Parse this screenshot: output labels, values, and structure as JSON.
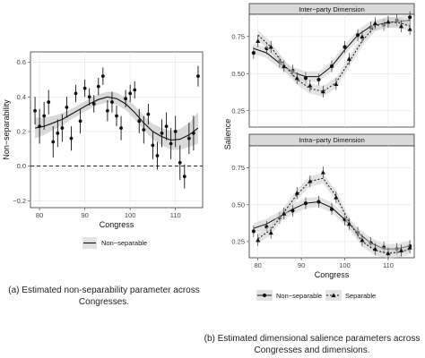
{
  "chart_data": [
    {
      "type": "scatter",
      "xlabel": "Congress",
      "ylabel": "Non−separability",
      "xlim": [
        78,
        116
      ],
      "ylim": [
        -0.24,
        0.66
      ],
      "xticks": [
        80,
        90,
        100,
        110
      ],
      "yticks": [
        -0.2,
        0.0,
        0.2,
        0.4,
        0.6
      ],
      "ytick_labels": [
        "−0.2",
        "0.0",
        "0.2",
        "0.4",
        "0.6"
      ],
      "reference_line": {
        "y": 0.0,
        "style": "dashed"
      },
      "grid": true,
      "legend": {
        "placement": "bottom",
        "entries": [
          "Non−separable"
        ]
      },
      "points": {
        "x": [
          79,
          80,
          81,
          82,
          83,
          84,
          85,
          86,
          87,
          88,
          89,
          90,
          91,
          92,
          93,
          94,
          95,
          96,
          97,
          98,
          99,
          100,
          101,
          102,
          103,
          104,
          105,
          106,
          107,
          108,
          109,
          110,
          111,
          112,
          113,
          114,
          115
        ],
        "y": [
          0.32,
          0.23,
          0.29,
          0.37,
          0.14,
          0.19,
          0.22,
          0.34,
          0.16,
          0.42,
          0.26,
          0.45,
          0.4,
          0.36,
          0.46,
          0.52,
          0.32,
          0.37,
          0.29,
          0.22,
          0.39,
          0.42,
          0.44,
          0.26,
          0.21,
          0.3,
          0.12,
          0.06,
          0.19,
          0.23,
          0.13,
          0.2,
          0.02,
          -0.06,
          0.16,
          0.19,
          0.52
        ],
        "ci_half": [
          0.08,
          0.1,
          0.08,
          0.07,
          0.09,
          0.08,
          0.08,
          0.06,
          0.07,
          0.05,
          0.07,
          0.05,
          0.05,
          0.05,
          0.05,
          0.05,
          0.06,
          0.06,
          0.06,
          0.07,
          0.05,
          0.05,
          0.05,
          0.07,
          0.08,
          0.06,
          0.08,
          0.08,
          0.08,
          0.08,
          0.09,
          0.09,
          0.1,
          0.07,
          0.09,
          0.1,
          0.06
        ]
      },
      "smooth": {
        "x": [
          79,
          81,
          83,
          85,
          87,
          89,
          91,
          93,
          95,
          97,
          99,
          101,
          103,
          105,
          107,
          109,
          111,
          113,
          115
        ],
        "y": [
          0.22,
          0.23,
          0.25,
          0.27,
          0.3,
          0.33,
          0.36,
          0.385,
          0.4,
          0.39,
          0.36,
          0.31,
          0.25,
          0.2,
          0.17,
          0.15,
          0.155,
          0.18,
          0.22
        ],
        "band_half": [
          0.06,
          0.05,
          0.04,
          0.035,
          0.03,
          0.03,
          0.03,
          0.03,
          0.03,
          0.035,
          0.035,
          0.04,
          0.04,
          0.045,
          0.05,
          0.055,
          0.06,
          0.07,
          0.09
        ]
      }
    },
    {
      "type": "scatter",
      "xlabel": "Congress",
      "ylabel": "Salience",
      "xlim": [
        78,
        116
      ],
      "ylim": [
        0.14,
        0.9
      ],
      "xticks": [
        80,
        90,
        100,
        110
      ],
      "yticks": [
        0.25,
        0.5,
        0.75
      ],
      "ytick_labels": [
        "0.25",
        "0.50",
        "0.75"
      ],
      "grid": true,
      "legend": {
        "placement": "bottom",
        "entries": [
          "Non−separable",
          "Separable"
        ]
      },
      "panels": [
        {
          "strip": "Inter−party Dimension",
          "series": [
            {
              "name": "Non−separable",
              "marker": "circle",
              "line": "solid",
              "x": [
                79,
                82,
                85,
                88,
                91,
                94,
                97,
                100,
                103,
                106,
                109,
                112,
                115
              ],
              "y": [
                0.64,
                0.67,
                0.58,
                0.52,
                0.47,
                0.46,
                0.55,
                0.68,
                0.76,
                0.81,
                0.83,
                0.86,
                0.88
              ],
              "smooth": [
                0.67,
                0.64,
                0.57,
                0.51,
                0.48,
                0.48,
                0.55,
                0.66,
                0.76,
                0.82,
                0.84,
                0.85,
                0.86
              ]
            },
            {
              "name": "Separable",
              "marker": "triangle",
              "line": "dotted",
              "x": [
                80,
                83,
                86,
                89,
                92,
                95,
                98,
                101,
                104,
                107,
                110,
                113,
                115
              ],
              "y": [
                0.72,
                0.68,
                0.55,
                0.47,
                0.42,
                0.38,
                0.43,
                0.6,
                0.75,
                0.84,
                0.85,
                0.82,
                0.8
              ],
              "smooth": [
                0.76,
                0.68,
                0.56,
                0.46,
                0.4,
                0.38,
                0.44,
                0.58,
                0.72,
                0.82,
                0.85,
                0.84,
                0.82
              ]
            }
          ]
        },
        {
          "strip": "Intra−party Dimension",
          "series": [
            {
              "name": "Non−separable",
              "marker": "circle",
              "line": "solid",
              "x": [
                79,
                82,
                85,
                88,
                91,
                94,
                97,
                100,
                103,
                106,
                109,
                112,
                115
              ],
              "y": [
                0.32,
                0.35,
                0.41,
                0.46,
                0.51,
                0.52,
                0.47,
                0.4,
                0.31,
                0.24,
                0.21,
                0.2,
                0.22
              ],
              "smooth": [
                0.34,
                0.37,
                0.42,
                0.47,
                0.51,
                0.52,
                0.48,
                0.4,
                0.31,
                0.24,
                0.2,
                0.2,
                0.22
              ]
            },
            {
              "name": "Separable",
              "marker": "triangle",
              "line": "dotted",
              "x": [
                80,
                83,
                86,
                89,
                92,
                95,
                98,
                101,
                104,
                107,
                110,
                113,
                115
              ],
              "y": [
                0.26,
                0.31,
                0.44,
                0.58,
                0.66,
                0.72,
                0.55,
                0.37,
                0.26,
                0.2,
                0.17,
                0.19,
                0.21
              ],
              "smooth": [
                0.27,
                0.33,
                0.45,
                0.57,
                0.66,
                0.68,
                0.56,
                0.38,
                0.25,
                0.19,
                0.17,
                0.18,
                0.2
              ]
            }
          ]
        }
      ]
    }
  ],
  "captions": {
    "a": "(a) Estimated non-separability parameter across Congresses.",
    "b": "(b) Estimated dimensional salience parameters across Congresses and dimensions."
  }
}
